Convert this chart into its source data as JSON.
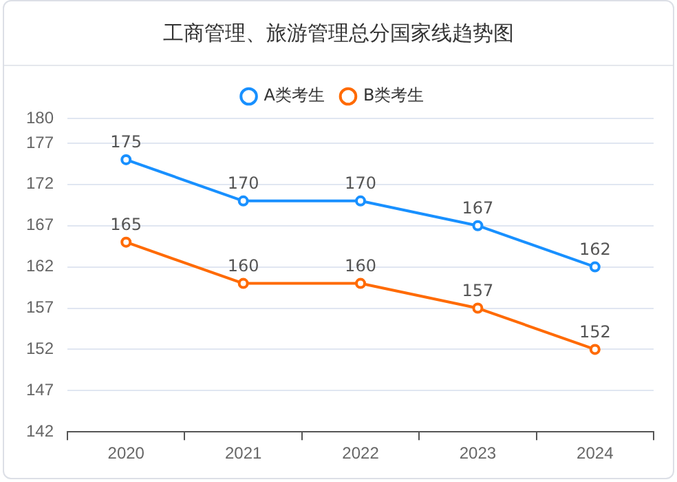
{
  "chart_data": {
    "type": "line",
    "title": "工商管理、旅游管理总分国家线趋势图",
    "categories": [
      "2020",
      "2021",
      "2022",
      "2023",
      "2024"
    ],
    "series": [
      {
        "name": "A类考生",
        "color": "#1890ff",
        "values": [
          175,
          170,
          170,
          167,
          162
        ]
      },
      {
        "name": "B类考生",
        "color": "#ff6a00",
        "values": [
          165,
          160,
          160,
          157,
          152
        ]
      }
    ],
    "ylim": [
      142,
      180
    ],
    "yticks": [
      142,
      147,
      152,
      157,
      162,
      167,
      172,
      177,
      180
    ],
    "grid": "y",
    "legend": "top",
    "marker": "circle",
    "line_style": "solid",
    "data_labels": true
  }
}
